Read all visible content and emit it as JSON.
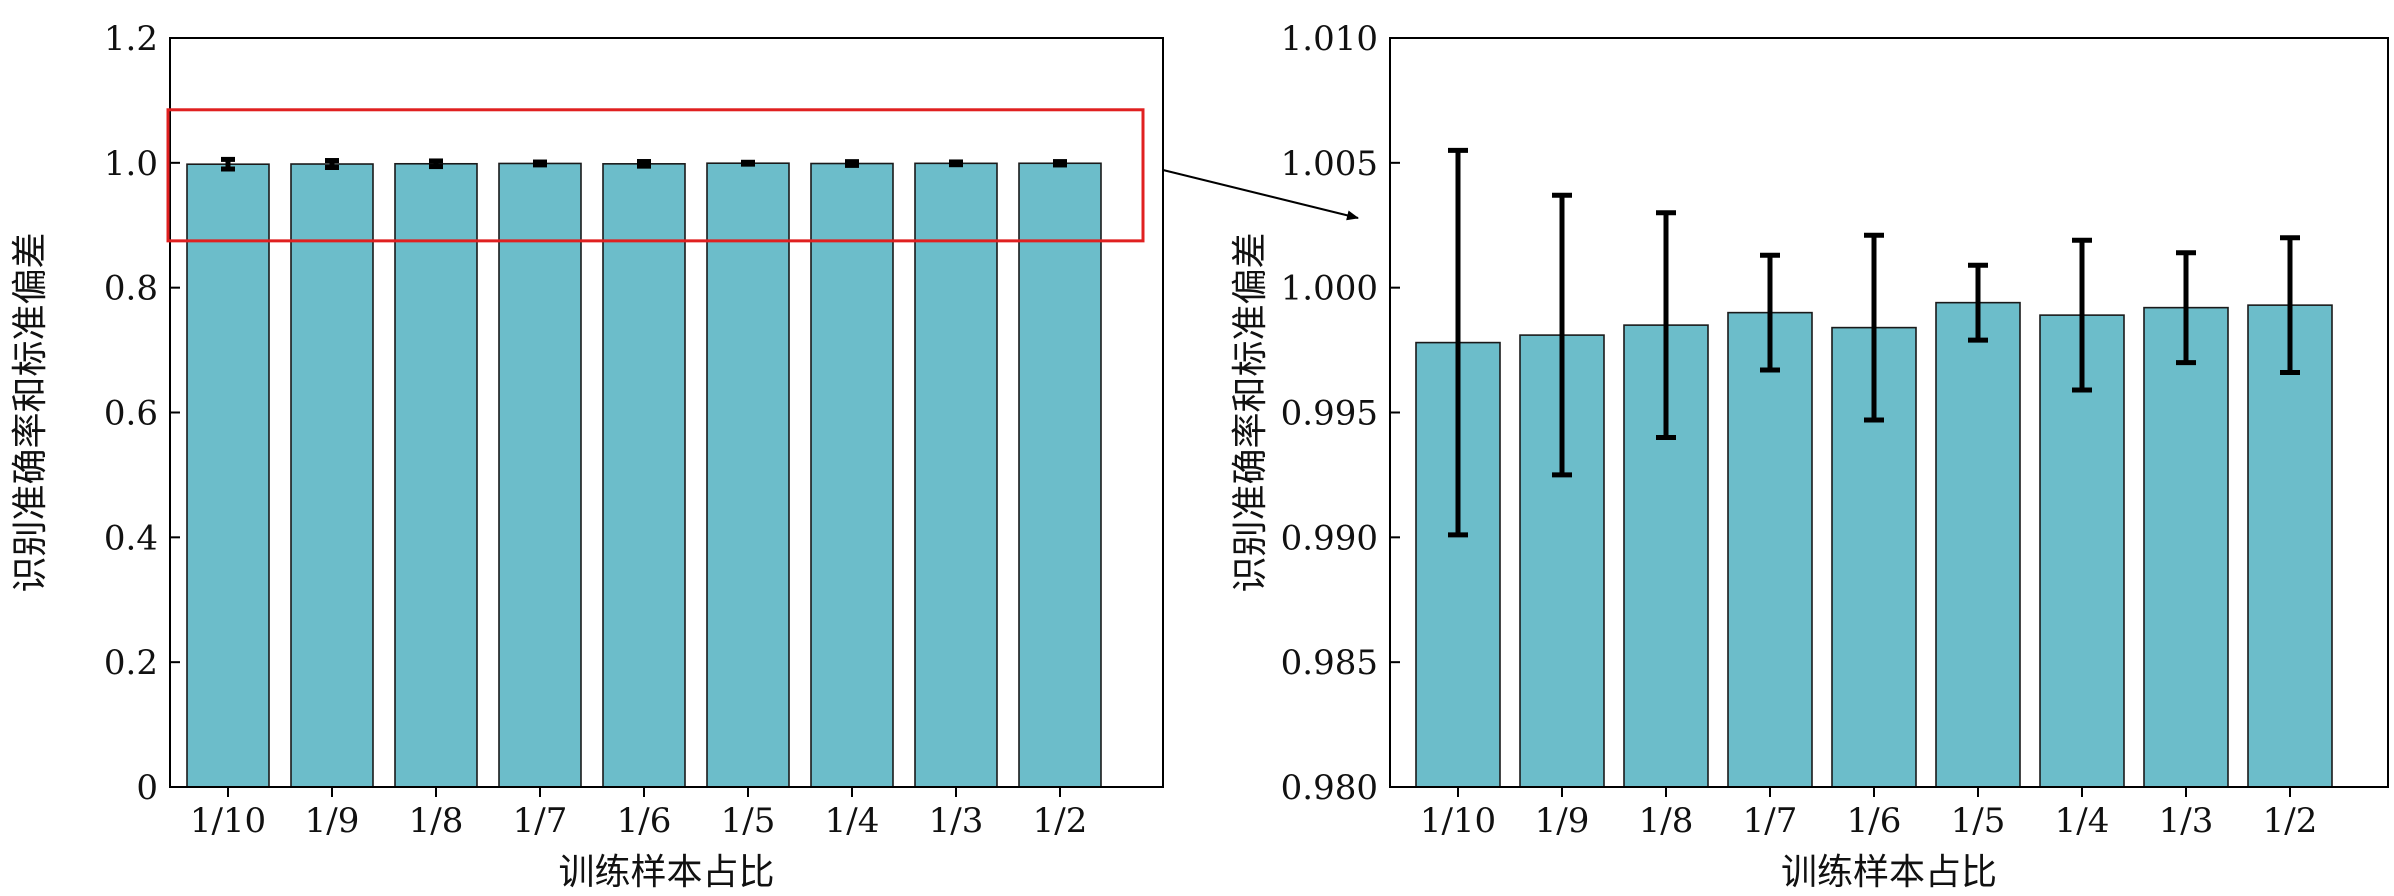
{
  "colors": {
    "bar": "#6cbdca",
    "highlight_box": "#e02020",
    "arrow": "#000000"
  },
  "chart_data": [
    {
      "type": "bar",
      "xlabel": "训练样本占比",
      "ylabel": "识别准确率和标准偏差",
      "categories": [
        "1/10",
        "1/9",
        "1/8",
        "1/7",
        "1/6",
        "1/5",
        "1/4",
        "1/3",
        "1/2"
      ],
      "values": [
        0.9978,
        0.9981,
        0.9985,
        0.999,
        0.9984,
        0.9994,
        0.9989,
        0.9992,
        0.9993
      ],
      "errors": [
        0.0077,
        0.0056,
        0.0045,
        0.0023,
        0.0037,
        0.0015,
        0.003,
        0.0022,
        0.0027
      ],
      "ylim": [
        0,
        1.2
      ],
      "yticks": [
        "0",
        "0.2",
        "0.4",
        "0.6",
        "0.8",
        "1.0",
        "1.2"
      ],
      "highlight_box_yrange": [
        0.875,
        1.085
      ]
    },
    {
      "type": "bar",
      "xlabel": "训练样本占比",
      "ylabel": "识别准确率和标准偏差",
      "categories": [
        "1/10",
        "1/9",
        "1/8",
        "1/7",
        "1/6",
        "1/5",
        "1/4",
        "1/3",
        "1/2"
      ],
      "values": [
        0.9978,
        0.9981,
        0.9985,
        0.999,
        0.9984,
        0.9994,
        0.9989,
        0.9992,
        0.9993
      ],
      "errors": [
        0.0077,
        0.0056,
        0.0045,
        0.0023,
        0.0037,
        0.0015,
        0.003,
        0.0022,
        0.0027
      ],
      "ylim": [
        0.98,
        1.01
      ],
      "yticks": [
        "0.980",
        "0.985",
        "0.990",
        "0.995",
        "1.000",
        "1.005",
        "1.010"
      ]
    }
  ]
}
